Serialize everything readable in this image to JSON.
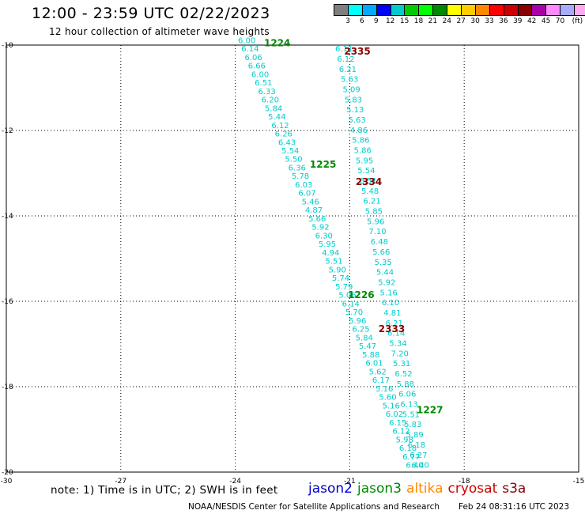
{
  "title": "12:00 - 23:59 UTC 02/22/2023",
  "subtitle": "12 hour collection of altimeter wave heights",
  "legend": {
    "colors": [
      "#7f7f7f",
      "#00ffff",
      "#00aaff",
      "#0000ff",
      "#00cccc",
      "#00cc00",
      "#00ff00",
      "#008800",
      "#ffff00",
      "#ffcc00",
      "#ff8800",
      "#ff0000",
      "#cc0000",
      "#880000",
      "#aa00aa",
      "#ff88ff",
      "#aaaaff",
      "#ffaaee",
      "#000000"
    ],
    "labels": [
      "3",
      "6",
      "9",
      "12",
      "15",
      "18",
      "21",
      "24",
      "27",
      "30",
      "33",
      "36",
      "39",
      "42",
      "45",
      "70",
      "(ft)"
    ]
  },
  "map": {
    "x_ticks": [
      "-30",
      "-27",
      "-24",
      "-21",
      "-18",
      "-15"
    ],
    "y_ticks": [
      "-10",
      "-12",
      "-14",
      "-16",
      "-18",
      "-20"
    ],
    "lon_range": [
      -30,
      -15
    ],
    "lat_range": [
      -20,
      -10
    ]
  },
  "passes": [
    {
      "time": "1224",
      "color": "#008800",
      "lon": -22.9,
      "lat": -9.95
    },
    {
      "time": "2335",
      "color": "#880000",
      "lon": -20.8,
      "lat": -10.15
    },
    {
      "time": "1225",
      "color": "#008800",
      "lon": -21.7,
      "lat": -12.8
    },
    {
      "time": "2334",
      "color": "#880000",
      "lon": -20.5,
      "lat": -13.2
    },
    {
      "time": "1226",
      "color": "#008800",
      "lon": -20.7,
      "lat": -15.85
    },
    {
      "time": "2333",
      "color": "#880000",
      "lon": -19.9,
      "lat": -16.65
    },
    {
      "time": "1227",
      "color": "#008800",
      "lon": -18.9,
      "lat": -18.55
    }
  ],
  "track_a": {
    "start": [
      -23.7,
      -9.95
    ],
    "end": [
      -19.3,
      -19.9
    ],
    "values": [
      "6.00",
      "6.14",
      "6.06",
      "6.66",
      "6.00",
      "6.51",
      "6.33",
      "6.20",
      "5.84",
      "5.44",
      "6.12",
      "6.26",
      "6.43",
      "5.54",
      "5.50",
      "6.36",
      "5.78",
      "6.03",
      "6.07",
      "5.46",
      "4.87",
      "5.66",
      "5.92",
      "6.30",
      "5.95",
      "4.94",
      "5.51",
      "5.90",
      "5.74",
      "5.79",
      "5.06",
      "6.14",
      "5.70",
      "5.96",
      "6.25",
      "5.84",
      "5.47",
      "5.88",
      "6.01",
      "5.62",
      "6.17",
      "5.16",
      "5.60",
      "5.16",
      "6.02",
      "6.15",
      "6.12",
      "5.98",
      "6.18",
      "6.77",
      "6.40"
    ]
  },
  "track_b": {
    "start": [
      -21.15,
      -10.15
    ],
    "end": [
      -19.15,
      -19.9
    ],
    "values": [
      "6.11",
      "6.12",
      "6.21",
      "5.63",
      "5.09",
      "5.83",
      "5.13",
      "5.63",
      "4.86",
      "5.86",
      "5.86",
      "5.95",
      "5.54",
      "6.51",
      "5.48",
      "6.21",
      "5.85",
      "5.96",
      "7.10",
      "6.48",
      "5.66",
      "5.35",
      "5.44",
      "5.92",
      "5.16",
      "6.10",
      "4.81",
      "6.21",
      "6.14",
      "5.34",
      "7.20",
      "5.31",
      "6.52",
      "5.88",
      "6.06",
      "6.13",
      "5.51",
      "5.83",
      "5.89",
      "6.18",
      "6.27",
      "6.40"
    ]
  },
  "footnote": "note: 1) Time is in UTC; 2) SWH is in feet",
  "satellites": [
    {
      "name": "jason2",
      "color": "#0000cc"
    },
    {
      "name": "jason3",
      "color": "#008800"
    },
    {
      "name": "altika",
      "color": "#ff8800"
    },
    {
      "name": "cryosat",
      "color": "#cc0000"
    },
    {
      "name": "s3a",
      "color": "#880000"
    }
  ],
  "credit": "NOAA/NESDIS Center for Satellite Applications and Research",
  "timestamp": "Feb 24 08:31:16 UTC 2023"
}
